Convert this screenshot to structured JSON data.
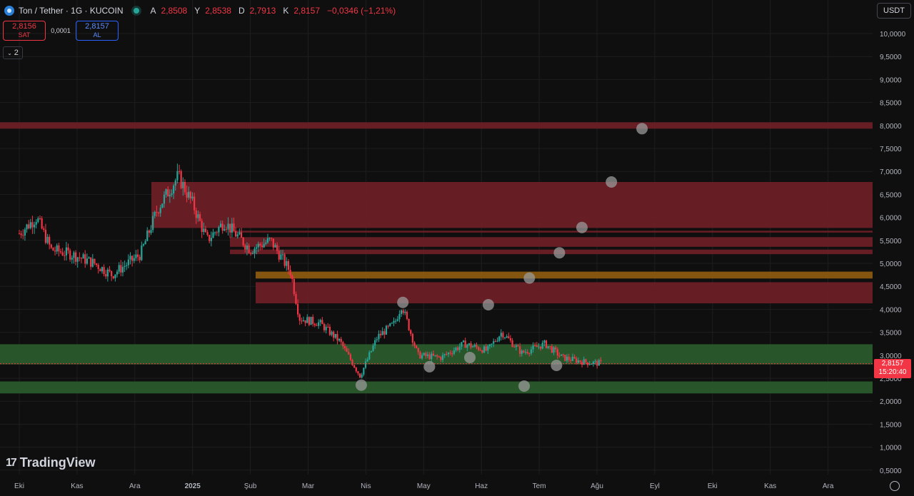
{
  "header": {
    "symbol": "Ton / Tether · 1G · KUCOIN",
    "ohlc": [
      {
        "label": "A",
        "value": "2,8508"
      },
      {
        "label": "Y",
        "value": "2,8538"
      },
      {
        "label": "D",
        "value": "2,7913"
      },
      {
        "label": "K",
        "value": "2,8157"
      },
      {
        "label": "",
        "value": "−0,0346 (−1,21%)"
      }
    ]
  },
  "trade": {
    "sell_price": "2,8156",
    "sell_label": "SAT",
    "spread": "0,0001",
    "buy_price": "2,8157",
    "buy_label": "AL"
  },
  "indicators_count": "2",
  "currency": "USDT",
  "price_tag": {
    "price": "2,8157",
    "countdown": "15:20:40"
  },
  "logo_text": "TradingView",
  "colors": {
    "up": "#26a69a",
    "down": "#f23645",
    "red_zone": "#6b1f26",
    "green_zone": "#2a5a2c",
    "orange_zone": "#8a5a10"
  },
  "chart_data": {
    "type": "candlestick",
    "ylim": [
      0.35,
      10.35
    ],
    "y_ticks": [
      "10,0000",
      "9,5000",
      "9,0000",
      "8,5000",
      "8,0000",
      "7,5000",
      "7,0000",
      "6,5000",
      "6,0000",
      "5,5000",
      "5,0000",
      "4,5000",
      "4,0000",
      "3,5000",
      "3,0000",
      "2,5000",
      "2,0000",
      "1,5000",
      "1,0000",
      "0,5000"
    ],
    "x_ticks": [
      "Eki",
      "Kas",
      "Ara",
      "2025",
      "Şub",
      "Mar",
      "Nis",
      "May",
      "Haz",
      "Tem",
      "Ağu",
      "Eyl",
      "Eki",
      "Kas",
      "Ara"
    ],
    "zones": [
      {
        "low": 7.93,
        "high": 8.07,
        "color": "red"
      },
      {
        "low": 5.77,
        "high": 6.77,
        "color": "red"
      },
      {
        "low": 5.67,
        "high": 5.71,
        "color": "red"
      },
      {
        "low": 5.36,
        "high": 5.57,
        "color": "red"
      },
      {
        "low": 5.2,
        "high": 5.3,
        "color": "red"
      },
      {
        "low": 4.67,
        "high": 4.82,
        "color": "orange"
      },
      {
        "low": 4.13,
        "high": 4.59,
        "color": "red"
      },
      {
        "low": 2.8,
        "high": 3.24,
        "color": "green"
      },
      {
        "low": 2.17,
        "high": 2.43,
        "color": "green"
      }
    ],
    "last_price": 2.8157,
    "close_path": [
      {
        "m": 0.0,
        "p": 5.65
      },
      {
        "m": 0.3,
        "p": 6.0
      },
      {
        "m": 0.55,
        "p": 5.3
      },
      {
        "m": 0.9,
        "p": 5.2
      },
      {
        "m": 1.3,
        "p": 5.0
      },
      {
        "m": 1.6,
        "p": 4.75
      },
      {
        "m": 2.1,
        "p": 5.2
      },
      {
        "m": 2.4,
        "p": 6.2
      },
      {
        "m": 2.75,
        "p": 6.9
      },
      {
        "m": 3.0,
        "p": 6.3
      },
      {
        "m": 3.25,
        "p": 5.5
      },
      {
        "m": 3.55,
        "p": 5.9
      },
      {
        "m": 4.0,
        "p": 5.3
      },
      {
        "m": 4.35,
        "p": 5.5
      },
      {
        "m": 4.7,
        "p": 4.8
      },
      {
        "m": 4.85,
        "p": 3.8
      },
      {
        "m": 5.2,
        "p": 3.7
      },
      {
        "m": 5.55,
        "p": 3.3
      },
      {
        "m": 5.9,
        "p": 2.55
      },
      {
        "m": 6.2,
        "p": 3.4
      },
      {
        "m": 6.5,
        "p": 3.7
      },
      {
        "m": 6.62,
        "p": 4.1
      },
      {
        "m": 6.9,
        "p": 3.0
      },
      {
        "m": 7.3,
        "p": 2.95
      },
      {
        "m": 7.7,
        "p": 3.25
      },
      {
        "m": 8.1,
        "p": 3.1
      },
      {
        "m": 8.35,
        "p": 3.5
      },
      {
        "m": 8.7,
        "p": 3.05
      },
      {
        "m": 9.1,
        "p": 3.25
      },
      {
        "m": 9.4,
        "p": 2.95
      },
      {
        "m": 9.8,
        "p": 2.85
      },
      {
        "m": 10.1,
        "p": 2.82
      }
    ],
    "markers": [
      {
        "m": 5.92,
        "p": 2.35
      },
      {
        "m": 6.64,
        "p": 4.15
      },
      {
        "m": 7.1,
        "p": 2.75
      },
      {
        "m": 7.8,
        "p": 2.95
      },
      {
        "m": 8.12,
        "p": 4.1
      },
      {
        "m": 8.74,
        "p": 2.33
      },
      {
        "m": 8.83,
        "p": 4.68
      },
      {
        "m": 9.3,
        "p": 2.78
      },
      {
        "m": 9.35,
        "p": 5.23
      },
      {
        "m": 9.74,
        "p": 5.78
      },
      {
        "m": 10.25,
        "p": 6.77
      },
      {
        "m": 10.78,
        "p": 7.93
      }
    ]
  }
}
